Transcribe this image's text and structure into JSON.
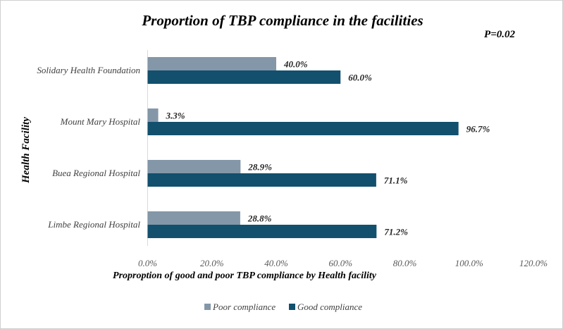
{
  "chart_data": {
    "type": "bar",
    "orientation": "horizontal",
    "title": "Proportion of TBP compliance in the facilities",
    "annotation": "P=0.02",
    "xlabel": "Proproption of good and poor TBP compliance by Health facility",
    "ylabel": "Health Facility",
    "xlim": [
      0,
      120
    ],
    "x_ticks": [
      "0.0%",
      "20.0%",
      "40.0%",
      "60.0%",
      "80.0%",
      "100.0%",
      "120.0%"
    ],
    "x_tick_values": [
      0,
      20,
      40,
      60,
      80,
      100,
      120
    ],
    "gridlines": false,
    "legend_position": "bottom",
    "categories": [
      "Solidary Health Foundation",
      "Mount Mary Hospital",
      "Buea Regional Hospital",
      "Limbe Regional Hospital"
    ],
    "series": [
      {
        "name": "Poor compliance",
        "color": "#8497a8",
        "values": [
          40.0,
          3.3,
          28.9,
          28.8
        ],
        "labels": [
          "40.0%",
          "3.3%",
          "28.9%",
          "28.8%"
        ]
      },
      {
        "name": "Good compliance",
        "color": "#12506e",
        "values": [
          60.0,
          96.7,
          71.1,
          71.2
        ],
        "labels": [
          "60.0%",
          "96.7%",
          "71.1%",
          "71.2%"
        ]
      }
    ]
  }
}
